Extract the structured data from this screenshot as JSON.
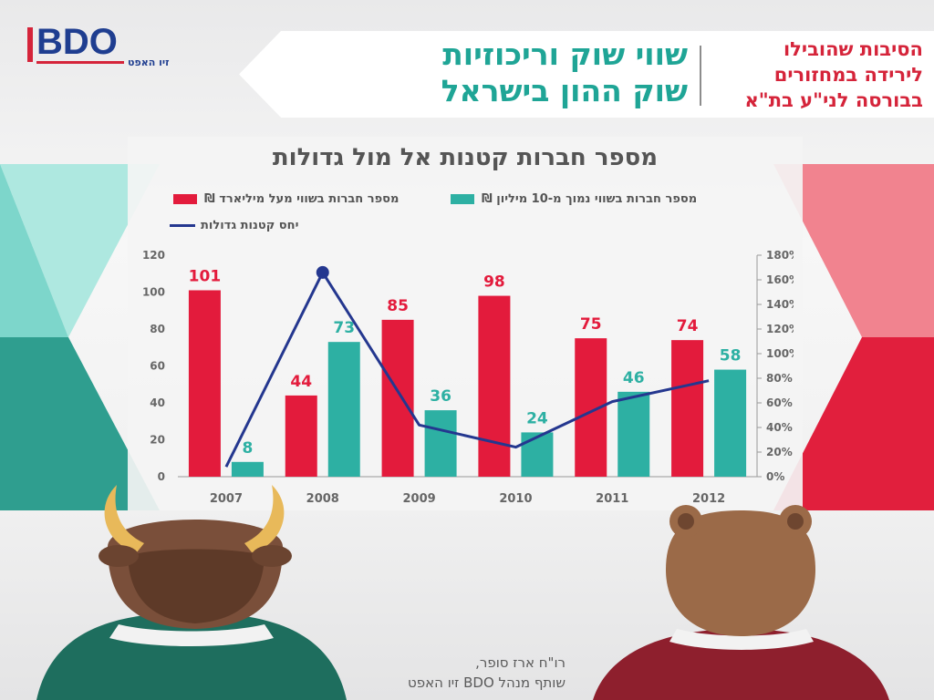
{
  "logo": {
    "brand": "BDO",
    "subtitle": "זיו האפט"
  },
  "banner": {
    "title_line1": "שווי שוק וריכוזיות",
    "title_line2": "שוק ההון בישראל",
    "subtitle_line1": "הסיבות שהובילו",
    "subtitle_line2": "לירידה במחזורים",
    "subtitle_line3": "בבורסה לני\"ע בת\"א"
  },
  "presenter": {
    "line1": "רו\"ח ארז סופר,",
    "line2": "שותף מנהל BDO זיו האפט"
  },
  "colors": {
    "red": "#e31b3c",
    "teal": "#2db0a3",
    "navy": "#24378f",
    "brand_blue": "#1f3e90"
  },
  "chart_data": {
    "type": "bar",
    "title": "מספר חברות קטנות אל מול גדולות",
    "categories": [
      "2007",
      "2008",
      "2009",
      "2010",
      "2011",
      "2012"
    ],
    "series": [
      {
        "name": "מספר חברות בשווי מעל מיליארד ₪",
        "kind": "bar",
        "axis": "left",
        "color": "#e31b3c",
        "values": [
          101,
          44,
          85,
          98,
          75,
          74
        ]
      },
      {
        "name": "מספר חברות בשווי נמוך מ-10 מיליון ₪",
        "kind": "bar",
        "axis": "left",
        "color": "#2db0a3",
        "values": [
          8,
          73,
          36,
          24,
          46,
          58
        ]
      },
      {
        "name": "יחס קטנות גדולות",
        "kind": "line",
        "axis": "right",
        "color": "#24378f",
        "values": [
          8,
          166,
          42,
          24,
          61,
          78
        ],
        "unit": "%"
      }
    ],
    "ylim_left": [
      0,
      120
    ],
    "yticks_left": [
      "0",
      "20",
      "40",
      "60",
      "80",
      "100",
      "120"
    ],
    "ylim_right": [
      0,
      180
    ],
    "yticks_right": [
      "0%",
      "20%",
      "40%",
      "60%",
      "80%",
      "100%",
      "120%",
      "140%",
      "160%",
      "180%"
    ],
    "grid": false,
    "legend_position": "top"
  }
}
